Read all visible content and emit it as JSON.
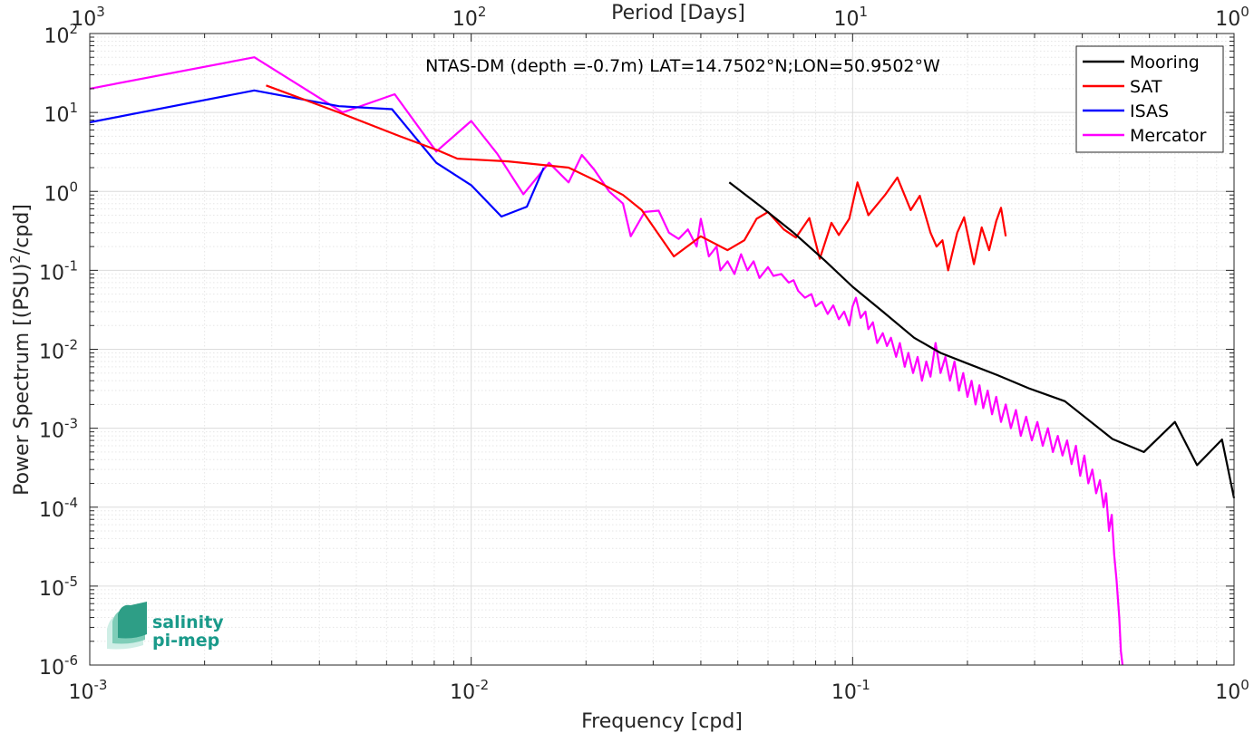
{
  "chart_data": {
    "type": "line",
    "title": "NTAS-DM (depth =-0.7m) LAT=14.7502°N;LON=50.9502°W",
    "xlabel": "Frequency [cpd]",
    "ylabel_parts": [
      "Power Spectrum [(PSU)",
      "2",
      "/cpd]"
    ],
    "x2label": "Period [Days]",
    "x_scale": "log",
    "y_scale": "log",
    "xlim": [
      0.001,
      1
    ],
    "ylim": [
      1e-06,
      100
    ],
    "grid": true,
    "legend_position": "top-right",
    "x_ticks": [
      {
        "base": "10",
        "exp": "-3"
      },
      {
        "base": "10",
        "exp": "-2"
      },
      {
        "base": "10",
        "exp": "-1"
      },
      {
        "base": "10",
        "exp": "0"
      }
    ],
    "x2_ticks": [
      {
        "base": "10",
        "exp": "3"
      },
      {
        "base": "10",
        "exp": "2"
      },
      {
        "base": "10",
        "exp": "1"
      },
      {
        "base": "10",
        "exp": "0"
      }
    ],
    "y_ticks": [
      {
        "base": "10",
        "exp": "2"
      },
      {
        "base": "10",
        "exp": "1"
      },
      {
        "base": "10",
        "exp": "0"
      },
      {
        "base": "10",
        "exp": "-1"
      },
      {
        "base": "10",
        "exp": "-2"
      },
      {
        "base": "10",
        "exp": "-3"
      },
      {
        "base": "10",
        "exp": "-4"
      },
      {
        "base": "10",
        "exp": "-5"
      },
      {
        "base": "10",
        "exp": "-6"
      }
    ],
    "series": [
      {
        "name": "Mooring",
        "color": "#000000",
        "points": [
          [
            0.0475,
            1.3
          ],
          [
            0.058,
            0.62
          ],
          [
            0.07,
            0.3
          ],
          [
            0.085,
            0.13
          ],
          [
            0.1,
            0.062
          ],
          [
            0.12,
            0.03
          ],
          [
            0.145,
            0.014
          ],
          [
            0.17,
            0.009
          ],
          [
            0.2,
            0.0066
          ],
          [
            0.24,
            0.0047
          ],
          [
            0.29,
            0.0032
          ],
          [
            0.36,
            0.0022
          ],
          [
            0.48,
            0.00073
          ],
          [
            0.58,
            0.0005
          ],
          [
            0.7,
            0.0012
          ],
          [
            0.8,
            0.00034
          ],
          [
            0.93,
            0.00072
          ],
          [
            1.0,
            0.00013
          ]
        ]
      },
      {
        "name": "SAT",
        "color": "#ff0000",
        "points": [
          [
            0.0029,
            22
          ],
          [
            0.0045,
            10
          ],
          [
            0.0065,
            5
          ],
          [
            0.0082,
            3.3
          ],
          [
            0.0092,
            2.6
          ],
          [
            0.0125,
            2.4
          ],
          [
            0.018,
            2.0
          ],
          [
            0.021,
            1.4
          ],
          [
            0.025,
            0.9
          ],
          [
            0.028,
            0.58
          ],
          [
            0.034,
            0.15
          ],
          [
            0.04,
            0.27
          ],
          [
            0.047,
            0.18
          ],
          [
            0.052,
            0.24
          ],
          [
            0.056,
            0.45
          ],
          [
            0.06,
            0.55
          ],
          [
            0.066,
            0.33
          ],
          [
            0.071,
            0.26
          ],
          [
            0.077,
            0.46
          ],
          [
            0.082,
            0.14
          ],
          [
            0.088,
            0.4
          ],
          [
            0.092,
            0.28
          ],
          [
            0.098,
            0.45
          ],
          [
            0.103,
            1.3
          ],
          [
            0.11,
            0.5
          ],
          [
            0.122,
            0.92
          ],
          [
            0.131,
            1.5
          ],
          [
            0.142,
            0.58
          ],
          [
            0.15,
            0.88
          ],
          [
            0.16,
            0.3
          ],
          [
            0.166,
            0.2
          ],
          [
            0.172,
            0.24
          ],
          [
            0.178,
            0.1
          ],
          [
            0.188,
            0.3
          ],
          [
            0.196,
            0.47
          ],
          [
            0.208,
            0.12
          ],
          [
            0.218,
            0.35
          ],
          [
            0.228,
            0.18
          ],
          [
            0.238,
            0.42
          ],
          [
            0.245,
            0.62
          ],
          [
            0.252,
            0.27
          ]
        ]
      },
      {
        "name": "ISAS",
        "color": "#0000ff",
        "points": [
          [
            0.001,
            7.5
          ],
          [
            0.0027,
            19
          ],
          [
            0.0045,
            12
          ],
          [
            0.0062,
            11
          ],
          [
            0.0081,
            2.3
          ],
          [
            0.01,
            1.2
          ],
          [
            0.012,
            0.48
          ],
          [
            0.014,
            0.64
          ],
          [
            0.0155,
            2.0
          ]
        ]
      },
      {
        "name": "Mercator",
        "color": "#ff00ff",
        "points": [
          [
            0.001,
            20
          ],
          [
            0.0027,
            50
          ],
          [
            0.0046,
            10
          ],
          [
            0.0063,
            17
          ],
          [
            0.0081,
            3.2
          ],
          [
            0.01,
            7.8
          ],
          [
            0.0117,
            3.0
          ],
          [
            0.0137,
            0.92
          ],
          [
            0.016,
            2.3
          ],
          [
            0.018,
            1.3
          ],
          [
            0.0195,
            2.9
          ],
          [
            0.021,
            1.9
          ],
          [
            0.023,
            1.0
          ],
          [
            0.025,
            0.7
          ],
          [
            0.0262,
            0.27
          ],
          [
            0.0285,
            0.55
          ],
          [
            0.031,
            0.57
          ],
          [
            0.033,
            0.3
          ],
          [
            0.035,
            0.25
          ],
          [
            0.037,
            0.33
          ],
          [
            0.039,
            0.2
          ],
          [
            0.04,
            0.45
          ],
          [
            0.042,
            0.15
          ],
          [
            0.044,
            0.2
          ],
          [
            0.045,
            0.1
          ],
          [
            0.047,
            0.13
          ],
          [
            0.049,
            0.09
          ],
          [
            0.051,
            0.16
          ],
          [
            0.053,
            0.1
          ],
          [
            0.055,
            0.13
          ],
          [
            0.057,
            0.08
          ],
          [
            0.06,
            0.11
          ],
          [
            0.062,
            0.085
          ],
          [
            0.065,
            0.09
          ],
          [
            0.068,
            0.07
          ],
          [
            0.07,
            0.075
          ],
          [
            0.072,
            0.055
          ],
          [
            0.075,
            0.045
          ],
          [
            0.078,
            0.05
          ],
          [
            0.08,
            0.035
          ],
          [
            0.083,
            0.04
          ],
          [
            0.086,
            0.028
          ],
          [
            0.089,
            0.036
          ],
          [
            0.092,
            0.024
          ],
          [
            0.095,
            0.03
          ],
          [
            0.098,
            0.02
          ],
          [
            0.1,
            0.035
          ],
          [
            0.102,
            0.045
          ],
          [
            0.105,
            0.025
          ],
          [
            0.108,
            0.03
          ],
          [
            0.11,
            0.018
          ],
          [
            0.113,
            0.022
          ],
          [
            0.116,
            0.012
          ],
          [
            0.12,
            0.016
          ],
          [
            0.123,
            0.011
          ],
          [
            0.126,
            0.014
          ],
          [
            0.13,
            0.008
          ],
          [
            0.133,
            0.012
          ],
          [
            0.137,
            0.006
          ],
          [
            0.14,
            0.009
          ],
          [
            0.144,
            0.005
          ],
          [
            0.148,
            0.008
          ],
          [
            0.152,
            0.004
          ],
          [
            0.156,
            0.007
          ],
          [
            0.16,
            0.0045
          ],
          [
            0.165,
            0.012
          ],
          [
            0.17,
            0.005
          ],
          [
            0.175,
            0.008
          ],
          [
            0.18,
            0.004
          ],
          [
            0.185,
            0.007
          ],
          [
            0.19,
            0.003
          ],
          [
            0.195,
            0.005
          ],
          [
            0.2,
            0.0025
          ],
          [
            0.205,
            0.004
          ],
          [
            0.21,
            0.002
          ],
          [
            0.215,
            0.0035
          ],
          [
            0.22,
            0.0018
          ],
          [
            0.226,
            0.003
          ],
          [
            0.232,
            0.0015
          ],
          [
            0.238,
            0.0025
          ],
          [
            0.245,
            0.0012
          ],
          [
            0.252,
            0.002
          ],
          [
            0.26,
            0.001
          ],
          [
            0.268,
            0.0017
          ],
          [
            0.276,
            0.0008
          ],
          [
            0.285,
            0.0014
          ],
          [
            0.295,
            0.0007
          ],
          [
            0.305,
            0.0012
          ],
          [
            0.315,
            0.0006
          ],
          [
            0.325,
            0.001
          ],
          [
            0.335,
            0.0005
          ],
          [
            0.345,
            0.0008
          ],
          [
            0.355,
            0.00045
          ],
          [
            0.365,
            0.0007
          ],
          [
            0.375,
            0.00035
          ],
          [
            0.385,
            0.0006
          ],
          [
            0.395,
            0.00025
          ],
          [
            0.405,
            0.00045
          ],
          [
            0.415,
            0.0002
          ],
          [
            0.425,
            0.0003
          ],
          [
            0.435,
            0.00015
          ],
          [
            0.445,
            0.00022
          ],
          [
            0.455,
            0.0001
          ],
          [
            0.462,
            0.00015
          ],
          [
            0.47,
            5e-05
          ],
          [
            0.478,
            8e-05
          ],
          [
            0.485,
            2.5e-05
          ],
          [
            0.492,
            1.2e-05
          ],
          [
            0.5,
            4e-06
          ],
          [
            0.505,
            1.5e-06
          ],
          [
            0.51,
            1e-06
          ]
        ]
      }
    ]
  },
  "logo": {
    "line1": "salinity",
    "line2": "pi-mep"
  }
}
